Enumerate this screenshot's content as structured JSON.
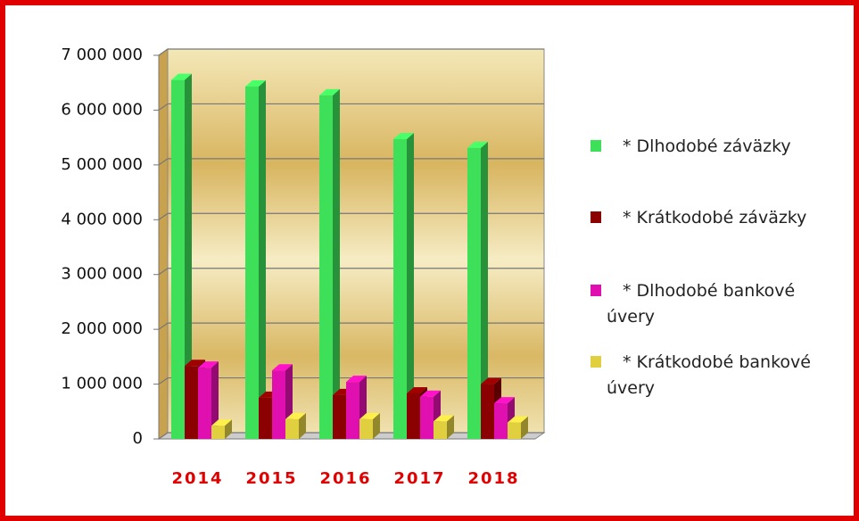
{
  "chart_data": {
    "type": "bar3d",
    "categories": [
      "2014",
      "2015",
      "2016",
      "2017",
      "2018"
    ],
    "series": [
      {
        "name": "* Dlhodobé záväzky",
        "color": "#3ee05a",
        "values": [
          6550000,
          6430000,
          6270000,
          5470000,
          5310000
        ]
      },
      {
        "name": "* Krátkodobé záväzky",
        "color": "#8b0000",
        "values": [
          1330000,
          750000,
          800000,
          830000,
          1000000
        ]
      },
      {
        "name": "* Dlhodobé bankové úvery",
        "color": "#e010b0",
        "values": [
          1300000,
          1250000,
          1040000,
          770000,
          650000
        ]
      },
      {
        "name": "* Krátkodobé bankové úvery",
        "color": "#e0d040",
        "values": [
          240000,
          360000,
          360000,
          320000,
          300000
        ]
      }
    ],
    "ylim": [
      0,
      7000000
    ],
    "yticks": [
      0,
      {
        "value": 1000000,
        "label": "1 000 000"
      },
      {
        "value": 2000000,
        "label": "2 000 000"
      },
      {
        "value": 3000000,
        "label": "3 000 000"
      },
      {
        "value": 4000000,
        "label": "4 000 000"
      },
      {
        "value": 5000000,
        "label": "5 000 000"
      },
      {
        "value": 6000000,
        "label": "6 000 000"
      },
      {
        "value": 7000000,
        "label": "7 000 000"
      }
    ],
    "grid": true
  }
}
